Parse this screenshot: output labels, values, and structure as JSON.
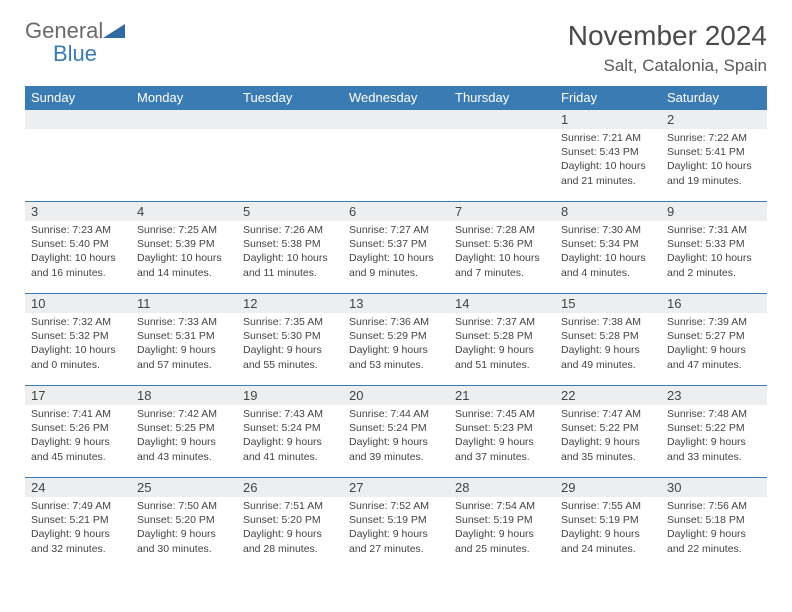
{
  "logo": {
    "text1": "General",
    "text2": "Blue"
  },
  "title": "November 2024",
  "location": "Salt, Catalonia, Spain",
  "colors": {
    "header_bg": "#3b7bb3",
    "header_fg": "#ffffff",
    "daynum_bg": "#eceef0",
    "row_border": "#3b7bb3",
    "text": "#444444",
    "title_color": "#4a4a4a"
  },
  "typography": {
    "title_fontsize": 28,
    "location_fontsize": 17,
    "header_fontsize": 13,
    "daynum_fontsize": 13,
    "body_fontsize": 10.5
  },
  "weekdays": [
    "Sunday",
    "Monday",
    "Tuesday",
    "Wednesday",
    "Thursday",
    "Friday",
    "Saturday"
  ],
  "weeks": [
    [
      {
        "empty": true
      },
      {
        "empty": true
      },
      {
        "empty": true
      },
      {
        "empty": true
      },
      {
        "empty": true
      },
      {
        "n": "1",
        "sunrise": "7:21 AM",
        "sunset": "5:43 PM",
        "dl1": "Daylight: 10 hours",
        "dl2": "and 21 minutes."
      },
      {
        "n": "2",
        "sunrise": "7:22 AM",
        "sunset": "5:41 PM",
        "dl1": "Daylight: 10 hours",
        "dl2": "and 19 minutes."
      }
    ],
    [
      {
        "n": "3",
        "sunrise": "7:23 AM",
        "sunset": "5:40 PM",
        "dl1": "Daylight: 10 hours",
        "dl2": "and 16 minutes."
      },
      {
        "n": "4",
        "sunrise": "7:25 AM",
        "sunset": "5:39 PM",
        "dl1": "Daylight: 10 hours",
        "dl2": "and 14 minutes."
      },
      {
        "n": "5",
        "sunrise": "7:26 AM",
        "sunset": "5:38 PM",
        "dl1": "Daylight: 10 hours",
        "dl2": "and 11 minutes."
      },
      {
        "n": "6",
        "sunrise": "7:27 AM",
        "sunset": "5:37 PM",
        "dl1": "Daylight: 10 hours",
        "dl2": "and 9 minutes."
      },
      {
        "n": "7",
        "sunrise": "7:28 AM",
        "sunset": "5:36 PM",
        "dl1": "Daylight: 10 hours",
        "dl2": "and 7 minutes."
      },
      {
        "n": "8",
        "sunrise": "7:30 AM",
        "sunset": "5:34 PM",
        "dl1": "Daylight: 10 hours",
        "dl2": "and 4 minutes."
      },
      {
        "n": "9",
        "sunrise": "7:31 AM",
        "sunset": "5:33 PM",
        "dl1": "Daylight: 10 hours",
        "dl2": "and 2 minutes."
      }
    ],
    [
      {
        "n": "10",
        "sunrise": "7:32 AM",
        "sunset": "5:32 PM",
        "dl1": "Daylight: 10 hours",
        "dl2": "and 0 minutes."
      },
      {
        "n": "11",
        "sunrise": "7:33 AM",
        "sunset": "5:31 PM",
        "dl1": "Daylight: 9 hours",
        "dl2": "and 57 minutes."
      },
      {
        "n": "12",
        "sunrise": "7:35 AM",
        "sunset": "5:30 PM",
        "dl1": "Daylight: 9 hours",
        "dl2": "and 55 minutes."
      },
      {
        "n": "13",
        "sunrise": "7:36 AM",
        "sunset": "5:29 PM",
        "dl1": "Daylight: 9 hours",
        "dl2": "and 53 minutes."
      },
      {
        "n": "14",
        "sunrise": "7:37 AM",
        "sunset": "5:28 PM",
        "dl1": "Daylight: 9 hours",
        "dl2": "and 51 minutes."
      },
      {
        "n": "15",
        "sunrise": "7:38 AM",
        "sunset": "5:28 PM",
        "dl1": "Daylight: 9 hours",
        "dl2": "and 49 minutes."
      },
      {
        "n": "16",
        "sunrise": "7:39 AM",
        "sunset": "5:27 PM",
        "dl1": "Daylight: 9 hours",
        "dl2": "and 47 minutes."
      }
    ],
    [
      {
        "n": "17",
        "sunrise": "7:41 AM",
        "sunset": "5:26 PM",
        "dl1": "Daylight: 9 hours",
        "dl2": "and 45 minutes."
      },
      {
        "n": "18",
        "sunrise": "7:42 AM",
        "sunset": "5:25 PM",
        "dl1": "Daylight: 9 hours",
        "dl2": "and 43 minutes."
      },
      {
        "n": "19",
        "sunrise": "7:43 AM",
        "sunset": "5:24 PM",
        "dl1": "Daylight: 9 hours",
        "dl2": "and 41 minutes."
      },
      {
        "n": "20",
        "sunrise": "7:44 AM",
        "sunset": "5:24 PM",
        "dl1": "Daylight: 9 hours",
        "dl2": "and 39 minutes."
      },
      {
        "n": "21",
        "sunrise": "7:45 AM",
        "sunset": "5:23 PM",
        "dl1": "Daylight: 9 hours",
        "dl2": "and 37 minutes."
      },
      {
        "n": "22",
        "sunrise": "7:47 AM",
        "sunset": "5:22 PM",
        "dl1": "Daylight: 9 hours",
        "dl2": "and 35 minutes."
      },
      {
        "n": "23",
        "sunrise": "7:48 AM",
        "sunset": "5:22 PM",
        "dl1": "Daylight: 9 hours",
        "dl2": "and 33 minutes."
      }
    ],
    [
      {
        "n": "24",
        "sunrise": "7:49 AM",
        "sunset": "5:21 PM",
        "dl1": "Daylight: 9 hours",
        "dl2": "and 32 minutes."
      },
      {
        "n": "25",
        "sunrise": "7:50 AM",
        "sunset": "5:20 PM",
        "dl1": "Daylight: 9 hours",
        "dl2": "and 30 minutes."
      },
      {
        "n": "26",
        "sunrise": "7:51 AM",
        "sunset": "5:20 PM",
        "dl1": "Daylight: 9 hours",
        "dl2": "and 28 minutes."
      },
      {
        "n": "27",
        "sunrise": "7:52 AM",
        "sunset": "5:19 PM",
        "dl1": "Daylight: 9 hours",
        "dl2": "and 27 minutes."
      },
      {
        "n": "28",
        "sunrise": "7:54 AM",
        "sunset": "5:19 PM",
        "dl1": "Daylight: 9 hours",
        "dl2": "and 25 minutes."
      },
      {
        "n": "29",
        "sunrise": "7:55 AM",
        "sunset": "5:19 PM",
        "dl1": "Daylight: 9 hours",
        "dl2": "and 24 minutes."
      },
      {
        "n": "30",
        "sunrise": "7:56 AM",
        "sunset": "5:18 PM",
        "dl1": "Daylight: 9 hours",
        "dl2": "and 22 minutes."
      }
    ]
  ]
}
